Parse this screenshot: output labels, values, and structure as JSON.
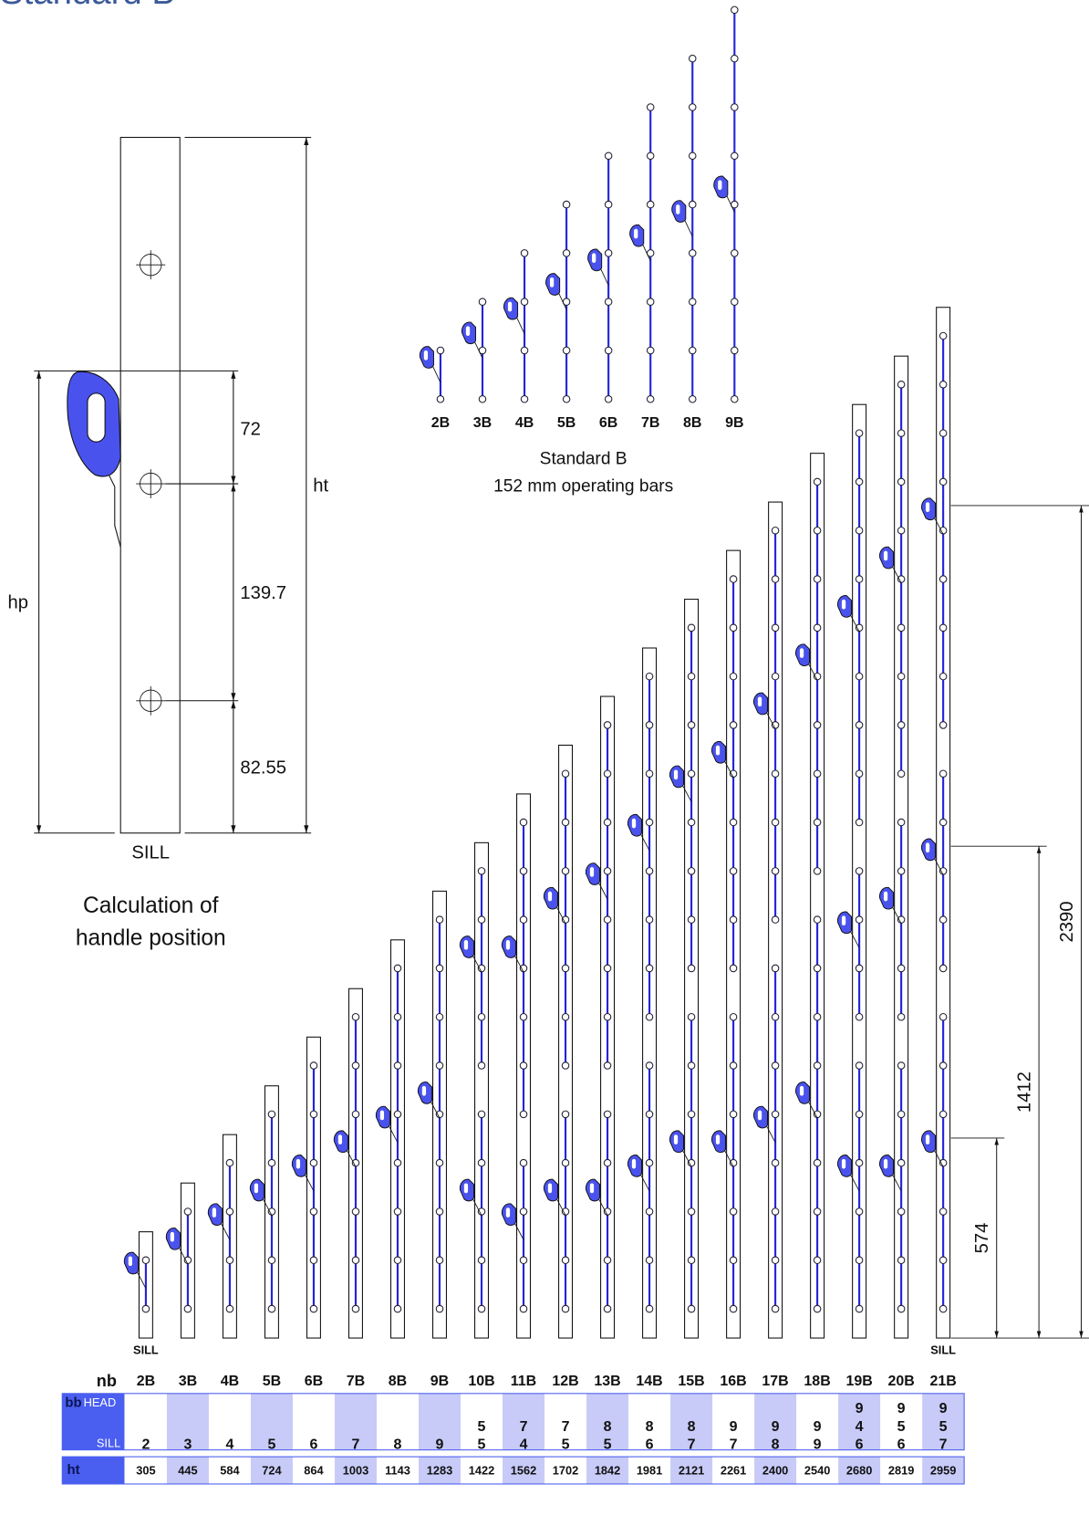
{
  "title": "Standard B",
  "detail": {
    "dims": [
      "72",
      "139.7",
      "82.55"
    ],
    "ht": "ht",
    "hp": "hp",
    "sill": "SILL",
    "caption": [
      "Calculation of",
      "handle position"
    ]
  },
  "operating_bars": {
    "labels": [
      "2B",
      "3B",
      "4B",
      "5B",
      "6B",
      "7B",
      "8B",
      "9B"
    ],
    "caption": [
      "Standard B",
      "152 mm operating bars"
    ]
  },
  "elevation": {
    "sill_labels": [
      "SILL",
      "SILL"
    ],
    "dimensions": [
      574,
      1412,
      2390
    ]
  },
  "table": {
    "nb_label": "nb",
    "bb_label": "bb",
    "head_label": "HEAD",
    "sill_label": "SILL",
    "ht_label": "ht",
    "columns": [
      {
        "nb": "2B",
        "bb": [
          2
        ],
        "ht": 305
      },
      {
        "nb": "3B",
        "bb": [
          3
        ],
        "ht": 445
      },
      {
        "nb": "4B",
        "bb": [
          4
        ],
        "ht": 584
      },
      {
        "nb": "5B",
        "bb": [
          5
        ],
        "ht": 724
      },
      {
        "nb": "6B",
        "bb": [
          6
        ],
        "ht": 864
      },
      {
        "nb": "7B",
        "bb": [
          7
        ],
        "ht": 1003
      },
      {
        "nb": "8B",
        "bb": [
          8
        ],
        "ht": 1143
      },
      {
        "nb": "9B",
        "bb": [
          9
        ],
        "ht": 1283
      },
      {
        "nb": "10B",
        "bb": [
          5,
          5
        ],
        "ht": 1422
      },
      {
        "nb": "11B",
        "bb": [
          7,
          4
        ],
        "ht": 1562
      },
      {
        "nb": "12B",
        "bb": [
          7,
          5
        ],
        "ht": 1702
      },
      {
        "nb": "13B",
        "bb": [
          8,
          5
        ],
        "ht": 1842
      },
      {
        "nb": "14B",
        "bb": [
          8,
          6
        ],
        "ht": 1981
      },
      {
        "nb": "15B",
        "bb": [
          8,
          7
        ],
        "ht": 2121
      },
      {
        "nb": "16B",
        "bb": [
          9,
          7
        ],
        "ht": 2261
      },
      {
        "nb": "17B",
        "bb": [
          9,
          8
        ],
        "ht": 2400
      },
      {
        "nb": "18B",
        "bb": [
          9,
          9
        ],
        "ht": 2540
      },
      {
        "nb": "19B",
        "bb": [
          9,
          4,
          6
        ],
        "ht": 2680
      },
      {
        "nb": "20B",
        "bb": [
          9,
          5,
          6
        ],
        "ht": 2819
      },
      {
        "nb": "21B",
        "bb": [
          9,
          5,
          7
        ],
        "ht": 2959
      }
    ]
  }
}
